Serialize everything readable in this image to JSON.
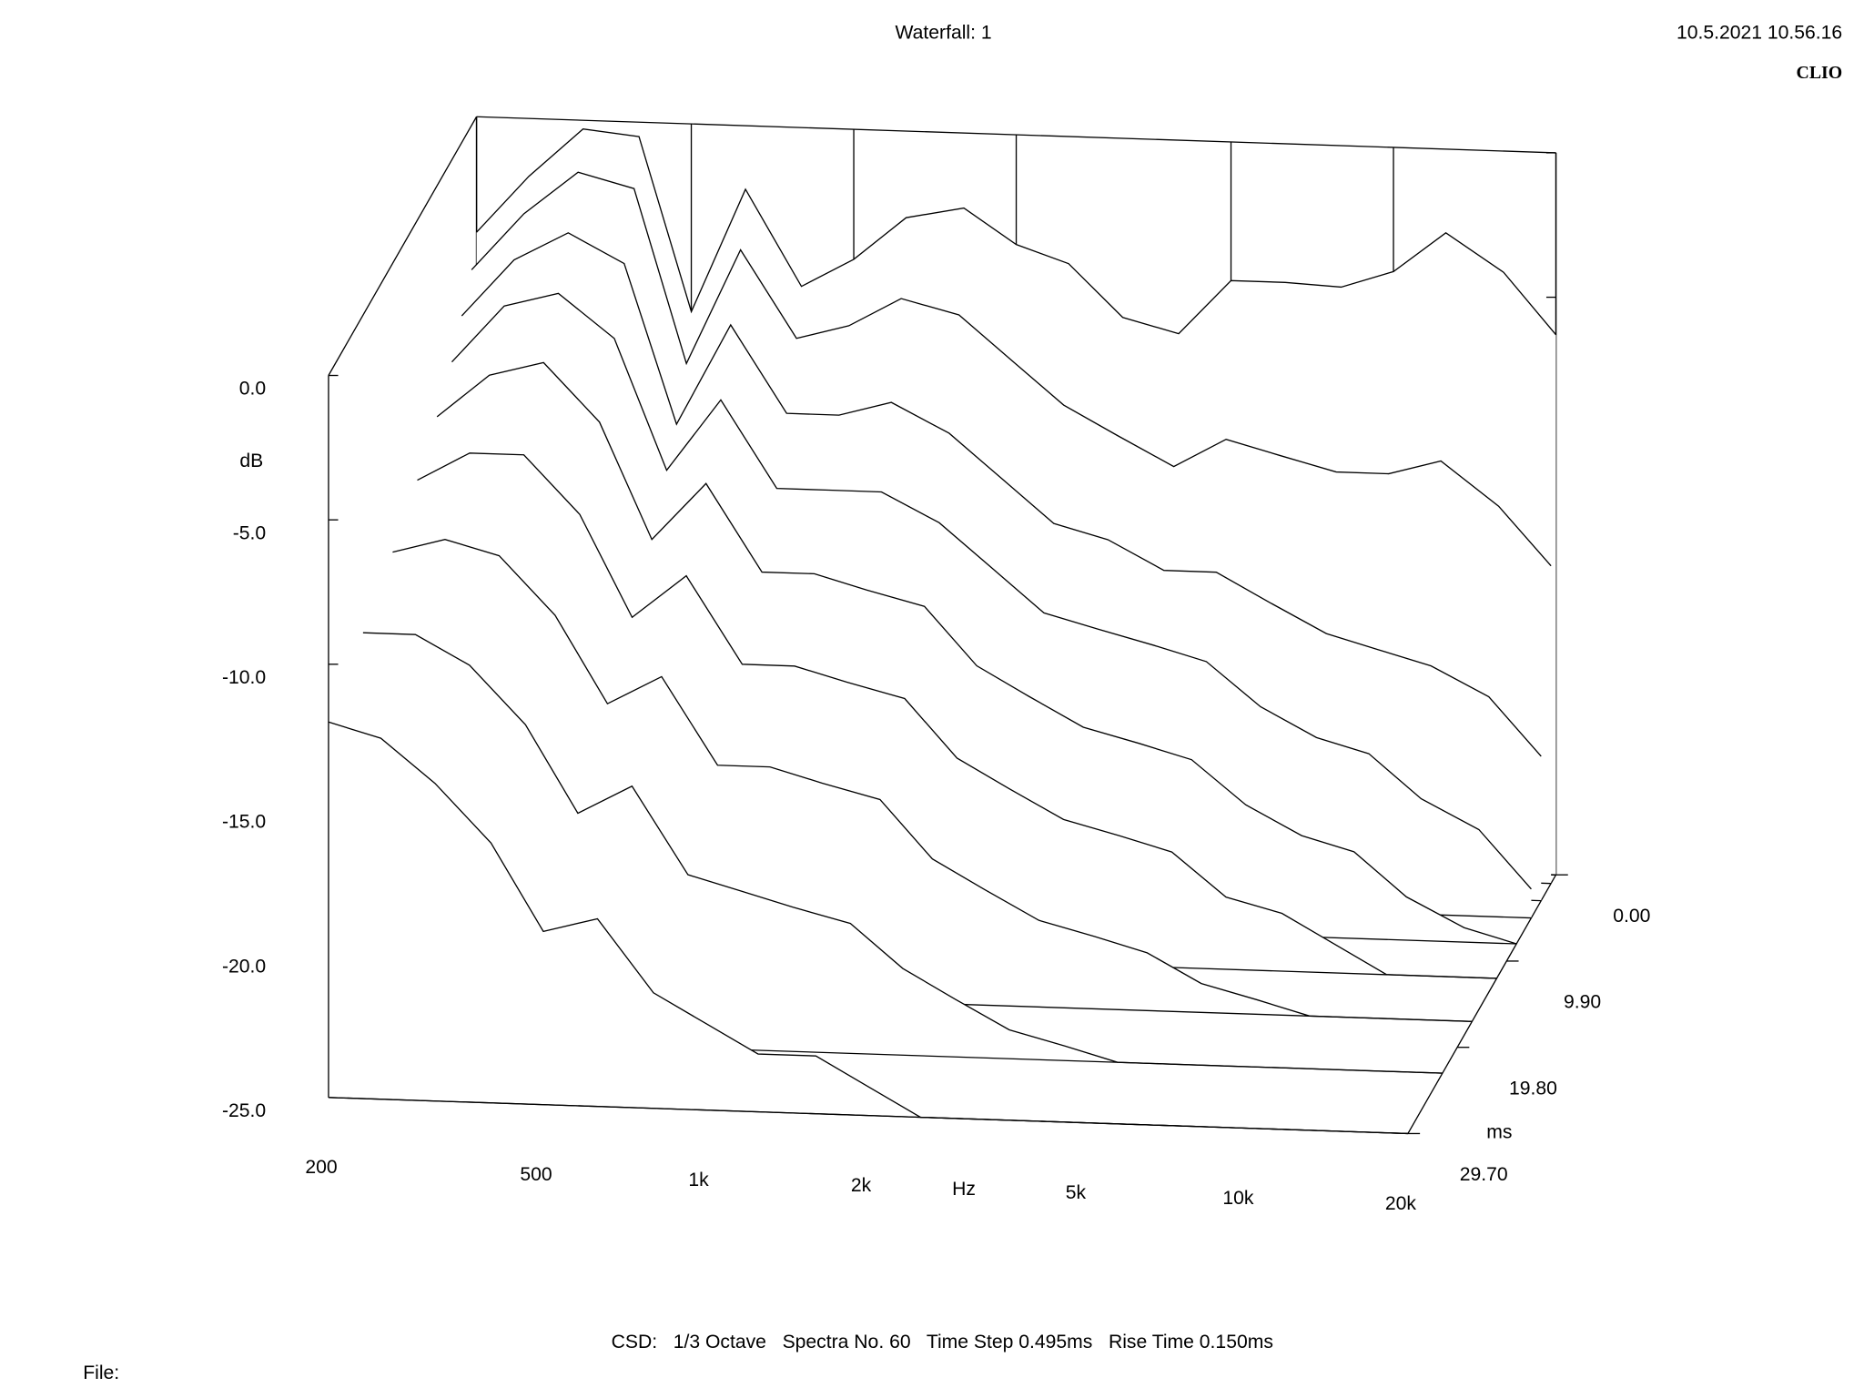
{
  "header": {
    "title": "Waterfall: 1",
    "timestamp": "10.5.2021 10.56.16",
    "brand": "CLIO"
  },
  "chart_data": {
    "type": "waterfall",
    "y_label": "dB",
    "x_label": "Hz",
    "z_label": "ms",
    "x": [
      200,
      250,
      315,
      400,
      500,
      630,
      800,
      1000,
      1250,
      1600,
      2000,
      2500,
      3150,
      4000,
      5000,
      6300,
      8000,
      10000,
      12500,
      16000,
      20000
    ],
    "xlim": [
      200,
      20000
    ],
    "log_x": true,
    "xticks": [
      200,
      500,
      {
        "value": 1000,
        "label": "1k"
      },
      {
        "value": 2000,
        "label": "2k"
      },
      {
        "value": 5000,
        "label": "5k"
      },
      {
        "value": 10000,
        "label": "10k"
      },
      {
        "value": 20000,
        "label": "20k"
      }
    ],
    "ylim": [
      -25,
      0
    ],
    "yticks": [
      {
        "value": 0,
        "label": "0.0"
      },
      {
        "value": -5,
        "label": "-5.0"
      },
      {
        "value": -10,
        "label": "-10.0"
      },
      {
        "value": -15,
        "label": "-15.0"
      },
      {
        "value": -20,
        "label": "-20.0"
      },
      {
        "value": -25,
        "label": "-25.0"
      }
    ],
    "zlim": [
      0,
      29.7
    ],
    "zticks": [
      {
        "value": 0,
        "label": "0.00"
      },
      {
        "value": 9.9,
        "label": "9.90"
      },
      {
        "value": 19.8,
        "label": "19.80"
      },
      {
        "value": 29.7,
        "label": "29.70"
      }
    ],
    "color": "#000000",
    "series": [
      {
        "z": 0,
        "values": [
          -4,
          -2,
          -0.3,
          -0.5,
          -6.5,
          -2.2,
          -5.5,
          -4.5,
          -3,
          -2.6,
          -3.8,
          -4.4,
          -6.2,
          -6.7,
          -4.8,
          -4.8,
          -4.9,
          -4.3,
          -2.9,
          -4.2,
          -6.3
        ]
      },
      {
        "z": 0.99,
        "values": [
          -5,
          -3,
          -1.5,
          -2,
          -8,
          -4,
          -7,
          -6.5,
          -5.5,
          -6,
          -7.5,
          -9,
          -10,
          -11,
          -10,
          -10.5,
          -11,
          -11,
          -10.5,
          -12,
          -14
        ]
      },
      {
        "z": 2.97,
        "values": [
          -6,
          -4,
          -3,
          -4,
          -9.5,
          -6,
          -9,
          -9,
          -8.5,
          -9.5,
          -11,
          -12.5,
          -13,
          -14,
          -14,
          -15,
          -16,
          -16.5,
          -17,
          -18,
          -20
        ]
      },
      {
        "z": 4.95,
        "values": [
          -7,
          -5,
          -4.5,
          -6,
          -10.5,
          -8,
          -11,
          -11,
          -11,
          -12,
          -13.5,
          -15,
          -15.5,
          -16,
          -16.5,
          -18,
          -19,
          -19.5,
          -21,
          -22,
          -24
        ]
      },
      {
        "z": 7.92,
        "values": [
          -8,
          -6.5,
          -6,
          -8,
          -12,
          -10,
          -13,
          -13,
          -13.5,
          -14,
          -16,
          -17,
          -18,
          -18.5,
          -19,
          -20.5,
          -21.5,
          -22,
          -23.5,
          -24.5,
          -25
        ]
      },
      {
        "z": 11.88,
        "values": [
          -9,
          -8,
          -8,
          -10,
          -13.5,
          -12,
          -15,
          -15,
          -15.5,
          -16,
          -18,
          -19,
          -20,
          -20.5,
          -21,
          -22.5,
          -23,
          -24,
          -25,
          -25,
          -25
        ]
      },
      {
        "z": 16.83,
        "values": [
          -10,
          -9.5,
          -10,
          -12,
          -15,
          -14,
          -17,
          -17,
          -17.5,
          -18,
          -20,
          -21,
          -22,
          -22.5,
          -23,
          -24,
          -24.5,
          -25,
          -25,
          -25,
          -25
        ]
      },
      {
        "z": 22.77,
        "values": [
          -11,
          -11,
          -12,
          -14,
          -17,
          -16,
          -19,
          -19.5,
          -20,
          -20.5,
          -22,
          -23,
          -24,
          -24.5,
          -25,
          -25,
          -25,
          -25,
          -25,
          -25,
          -25
        ]
      },
      {
        "z": 29.7,
        "values": [
          -12,
          -12.5,
          -14,
          -16,
          -19,
          -18.5,
          -21,
          -22,
          -23,
          -23,
          -24,
          -25,
          -25,
          -25,
          -25,
          -25,
          -25,
          -25,
          -25,
          -25,
          -25
        ]
      }
    ]
  },
  "footer": {
    "settings": "CSD:   1/3 Octave   Spectra No. 60   Time Step 0.495ms   Rise Time 0.150ms",
    "file": "File:"
  }
}
